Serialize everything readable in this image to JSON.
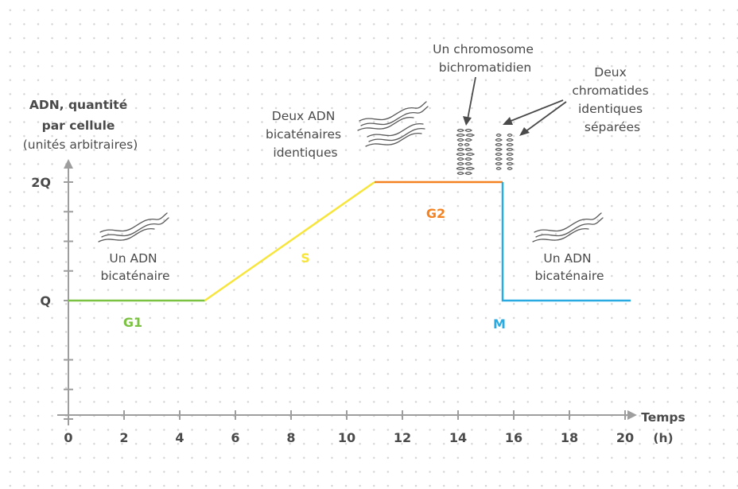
{
  "chart_data": {
    "type": "line",
    "ylabel_lines": [
      "ADN, quantité",
      "par cellule",
      "(unités arbitraires)"
    ],
    "xlabel": "Temps",
    "xunit": "(h)",
    "xlim": [
      0,
      20
    ],
    "xticks": [
      0,
      2,
      4,
      6,
      8,
      10,
      12,
      14,
      16,
      18,
      20
    ],
    "ytick_labels": [
      "Q",
      "2Q"
    ],
    "ytick_values": [
      1,
      2
    ],
    "grid": false,
    "series": [
      {
        "name": "G1",
        "color": "#7cc242",
        "x": [
          0,
          4.9
        ],
        "y": [
          1,
          1
        ]
      },
      {
        "name": "S",
        "color": "#f7e53b",
        "x": [
          4.9,
          11
        ],
        "y": [
          1,
          2
        ]
      },
      {
        "name": "G2",
        "color": "#f58220",
        "x": [
          11,
          15.6
        ],
        "y": [
          2,
          2
        ]
      },
      {
        "name": "M",
        "color": "#29abe2",
        "x": [
          15.6,
          15.6,
          20.2
        ],
        "y": [
          2,
          1,
          1
        ]
      }
    ],
    "annotations": [
      {
        "id": "a1",
        "lines": [
          "Un ADN",
          "bicaténaire"
        ]
      },
      {
        "id": "a2",
        "lines": [
          "Deux ADN",
          "bicaténaires",
          "identiques"
        ]
      },
      {
        "id": "a3",
        "lines": [
          "Un chromosome",
          "bichromatidien"
        ]
      },
      {
        "id": "a4",
        "lines": [
          "Deux",
          "chromatides",
          "identiques",
          "séparées"
        ]
      },
      {
        "id": "a5",
        "lines": [
          "Un ADN",
          "bicaténaire"
        ]
      }
    ]
  },
  "colors": {
    "axis": "#9e9e9e",
    "text": "#4a4a4a",
    "dna": "#5a5a5a"
  }
}
